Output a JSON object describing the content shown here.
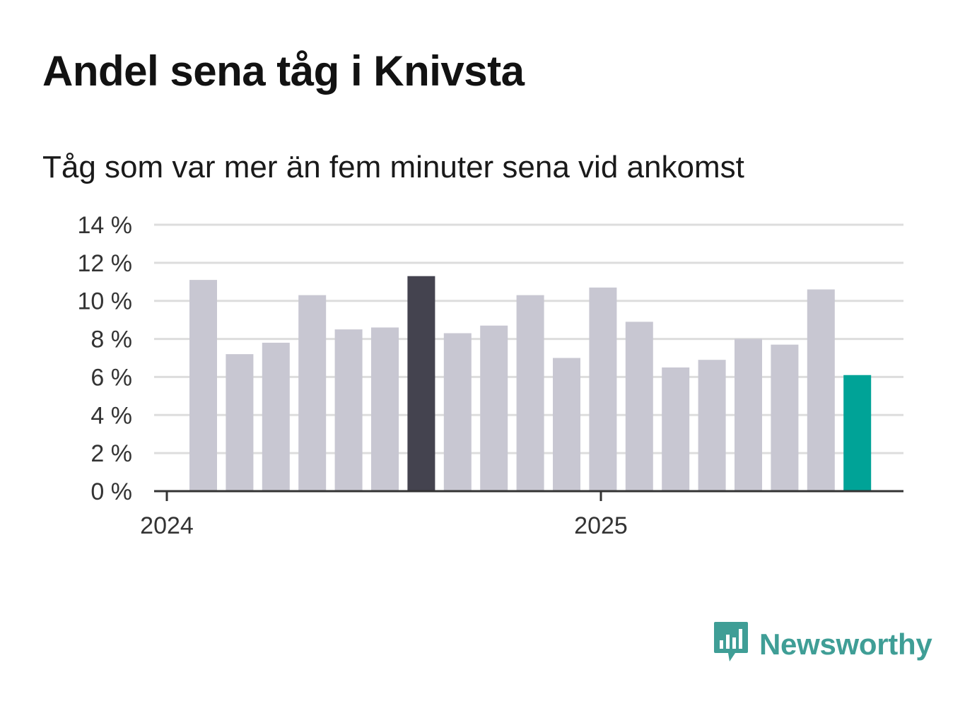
{
  "title": "Andel sena tåg i Knivsta",
  "subtitle": "Tåg som var mer än fem minuter sena vid ankomst",
  "brand": {
    "name": "Newsworthy",
    "color": "#3f9e96",
    "icon": "newsworthy-logo-icon"
  },
  "colors": {
    "default": "#c8c7d2",
    "highlight": "#44434f",
    "latest": "#00a397",
    "grid": "#dddddd",
    "axis": "#333333"
  },
  "chart_data": {
    "type": "bar",
    "title": "Andel sena tåg i Knivsta",
    "subtitle": "Tåg som var mer än fem minuter sena vid ankomst",
    "xlabel": "",
    "ylabel": "",
    "ylim": [
      0,
      14
    ],
    "yticks": [
      0,
      2,
      4,
      6,
      8,
      10,
      12,
      14
    ],
    "ytick_labels": [
      "0 %",
      "2 %",
      "4 %",
      "6 %",
      "8 %",
      "10 %",
      "12 %",
      "14 %"
    ],
    "xtick_labels": [
      "2024",
      "2025"
    ],
    "grid": true,
    "legend": "none",
    "categories": [
      "2024-01",
      "2024-02",
      "2024-03",
      "2024-04",
      "2024-05",
      "2024-06",
      "2024-07",
      "2024-08",
      "2024-09",
      "2024-10",
      "2024-11",
      "2024-12",
      "2025-01",
      "2025-02",
      "2025-03",
      "2025-04",
      "2025-05",
      "2025-06",
      "2025-07"
    ],
    "values": [
      11.1,
      7.2,
      7.8,
      10.3,
      8.5,
      8.6,
      11.3,
      8.3,
      8.7,
      10.3,
      7.0,
      10.7,
      8.9,
      6.5,
      6.9,
      8.0,
      7.7,
      10.6,
      6.1
    ],
    "bar_roles": [
      "default",
      "default",
      "default",
      "default",
      "default",
      "default",
      "highlight",
      "default",
      "default",
      "default",
      "default",
      "default",
      "default",
      "default",
      "default",
      "default",
      "default",
      "default",
      "latest"
    ]
  }
}
